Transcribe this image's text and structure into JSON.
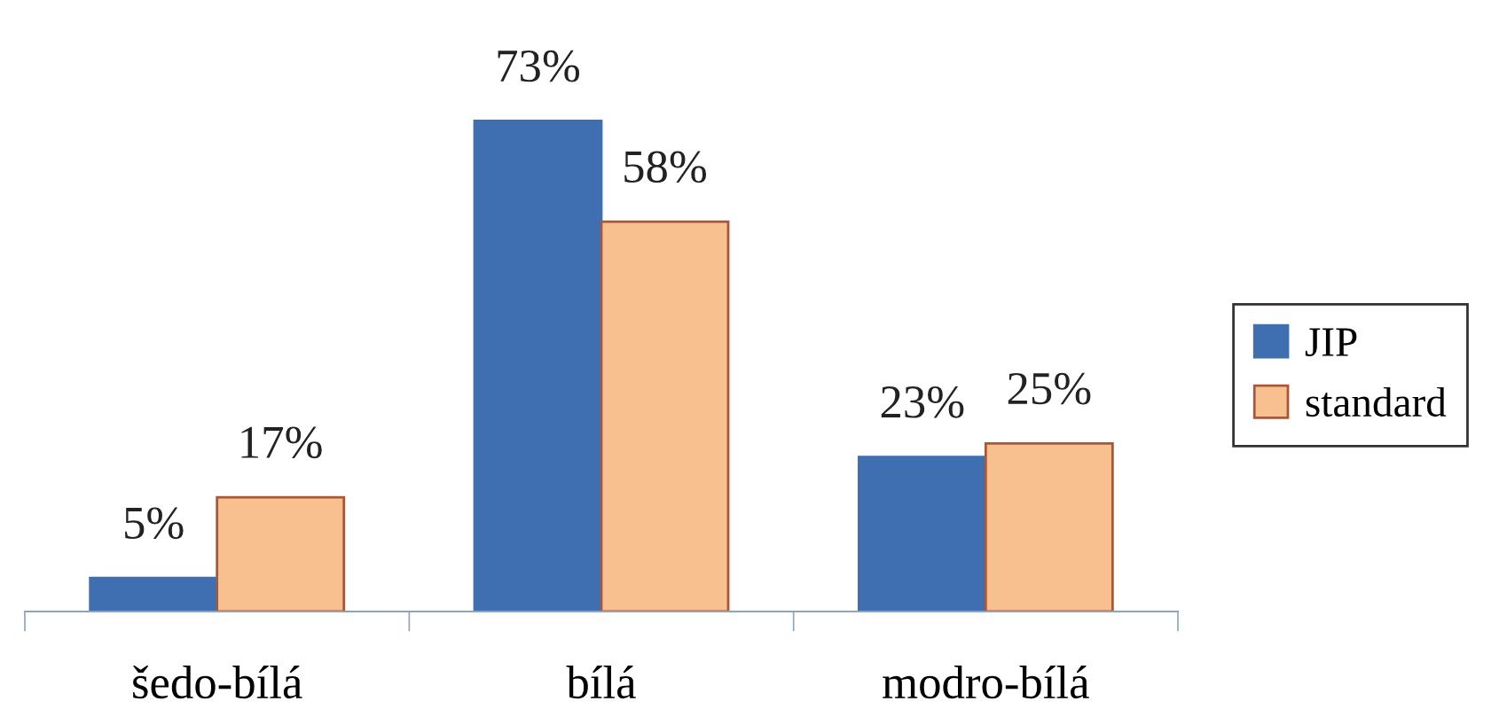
{
  "chart_data": {
    "type": "bar",
    "categories": [
      "šedo-bílá",
      "bílá",
      "modro-bílá"
    ],
    "series": [
      {
        "name": "JIP",
        "color": "#3f6fb0",
        "values": [
          5,
          73,
          23
        ],
        "value_labels": [
          "5%",
          "73%",
          "23%"
        ]
      },
      {
        "name": "standard",
        "color": "#f8c08e",
        "values": [
          17,
          58,
          25
        ],
        "value_labels": [
          "17%",
          "58%",
          "25%"
        ]
      }
    ],
    "legend": "right",
    "grid": false,
    "tick_labels": "x"
  }
}
